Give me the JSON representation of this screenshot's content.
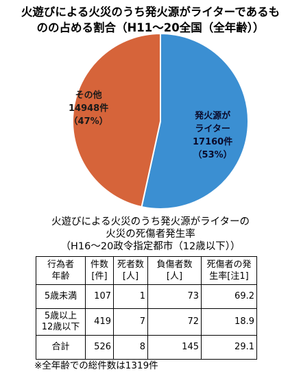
{
  "chart_data": [
    {
      "type": "pie",
      "title": [
        "火遊びによる火災のうち発火源がライターであるも",
        "のの占める割合（H11～20全国（全年齢））"
      ],
      "slices": [
        {
          "label": "発火源が\nライター",
          "value": 17160,
          "value_label": "17160件",
          "percent": 53,
          "percent_label": "（53%）",
          "color": "#3b8fd2"
        },
        {
          "label": "その他",
          "value": 14948,
          "value_label": "14948件",
          "percent": 47,
          "percent_label": "（47%）",
          "color": "#d6643a"
        }
      ],
      "legend": "none"
    },
    {
      "type": "table",
      "title": [
        "火遊びによる火災のうち発火源がライターの",
        "火災の死傷者発生率",
        "（H16～20政令指定都市（12歳以下））"
      ],
      "columns": [
        "行為者\n年齢",
        "件数\n[件]",
        "死者数\n[人]",
        "負傷者数\n[人]",
        "死傷者の発\n生率[注1]"
      ],
      "rows": [
        [
          "5歳未満",
          "107",
          "1",
          "73",
          "69.2"
        ],
        [
          "5歳以上\n12歳以下",
          "419",
          "7",
          "72",
          "18.9"
        ],
        [
          "合計",
          "526",
          "8",
          "145",
          "29.1"
        ]
      ],
      "footnote": "※全年齢での総件数は1319件"
    }
  ]
}
